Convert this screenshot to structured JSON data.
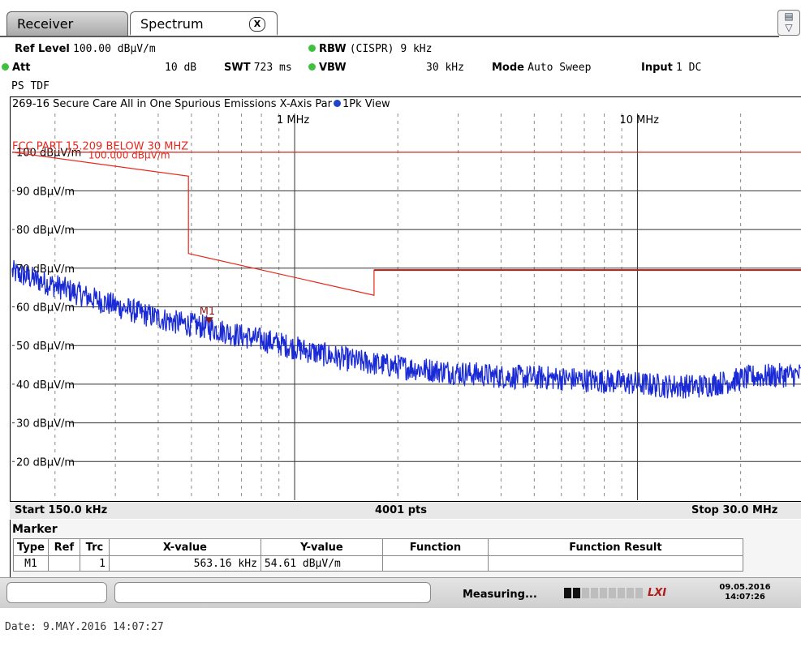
{
  "tabs": {
    "receiver": "Receiver",
    "spectrum": "Spectrum",
    "close": "X"
  },
  "settings": {
    "ref_level_label": "Ref Level",
    "ref_level_value": "100.00 dBµV/m",
    "att_label": "Att",
    "att_value": "10 dB",
    "swt_label": "SWT",
    "swt_value": "723 ms",
    "rbw_label": "RBW",
    "rbw_value": "(CISPR) 9 kHz",
    "vbw_label": "VBW",
    "vbw_value": "30 kHz",
    "mode_label": "Mode",
    "mode_value": "Auto Sweep",
    "input_label": "Input",
    "input_value": "1 DC",
    "transducer": "PS TDF"
  },
  "diagram": {
    "title": "269-16 Secure Care All in One Spurious Emissions X-Axis Par",
    "trace_label": "1Pk View",
    "start": "Start 150.0 kHz",
    "points": "4001 pts",
    "stop": "Stop 30.0 MHz"
  },
  "chart_data": {
    "type": "line",
    "x_scale": "log",
    "xlim_hz": [
      150000,
      30000000
    ],
    "ylim_dbuv_m": [
      10,
      110
    ],
    "x_tick_labels": [
      {
        "hz": 1000000,
        "label": "1 MHz"
      },
      {
        "hz": 10000000,
        "label": "10 MHz"
      }
    ],
    "y_tick_labels": [
      {
        "value": 100,
        "label": "100 dBµV/m"
      },
      {
        "value": 90,
        "label": "90 dBµV/m"
      },
      {
        "value": 80,
        "label": "80 dBµV/m"
      },
      {
        "value": 70,
        "label": "70 dBµV/m"
      },
      {
        "value": 60,
        "label": "60 dBµV/m"
      },
      {
        "value": 50,
        "label": "50 dBµV/m"
      },
      {
        "value": 40,
        "label": "40 dBµV/m"
      },
      {
        "value": 30,
        "label": "30 dBµV/m"
      },
      {
        "value": 20,
        "label": "20 dBµV/m"
      }
    ],
    "limit_line": {
      "name": "FCC PART 15.209 BELOW 30 MHZ",
      "label_value": "100.000 dBµV/m",
      "color": "#e8271d",
      "points": [
        [
          150000,
          100
        ],
        [
          490000,
          93.8
        ],
        [
          490000,
          73.8
        ],
        [
          1705000,
          63.0
        ],
        [
          1705000,
          69.5
        ],
        [
          30000000,
          69.5
        ]
      ]
    },
    "reference_line": {
      "value": 100,
      "color": "#e8271d"
    },
    "series": [
      {
        "color": "#1a2bd6",
        "points": [
          [
            150000,
            69
          ],
          [
            200000,
            65.5
          ],
          [
            260000,
            62
          ],
          [
            350000,
            58.5
          ],
          [
            450000,
            56
          ],
          [
            563160,
            54.6
          ],
          [
            700000,
            52.5
          ],
          [
            900000,
            50.5
          ],
          [
            1100000,
            48.5
          ],
          [
            1500000,
            46
          ],
          [
            2000000,
            44.5
          ],
          [
            3000000,
            43
          ],
          [
            4000000,
            42
          ],
          [
            6000000,
            41.5
          ],
          [
            9000000,
            40.5
          ],
          [
            12000000,
            39.5
          ],
          [
            15000000,
            39.5
          ],
          [
            18000000,
            40.5
          ],
          [
            22000000,
            42
          ],
          [
            30000000,
            42.5
          ]
        ]
      }
    ],
    "marker": {
      "name": "M1",
      "x_hz": 563160,
      "y_dbuv_m": 54.61,
      "color": "#8b1a1a"
    }
  },
  "marker_table": {
    "title": "Marker",
    "headers": [
      "Type",
      "Ref",
      "Trc",
      "X-value",
      "Y-value",
      "Function",
      "Function Result"
    ],
    "rows": [
      {
        "type": "M1",
        "ref": "",
        "trc": "1",
        "x": "563.16 kHz",
        "y": "54.61 dBµV/m",
        "function": "",
        "result": ""
      }
    ]
  },
  "status": {
    "measuring": "Measuring...",
    "logo": "LXI",
    "date": "09.05.2016",
    "time": "14:07:26"
  },
  "footer": {
    "date": "Date: 9.MAY.2016  14:07:27"
  }
}
